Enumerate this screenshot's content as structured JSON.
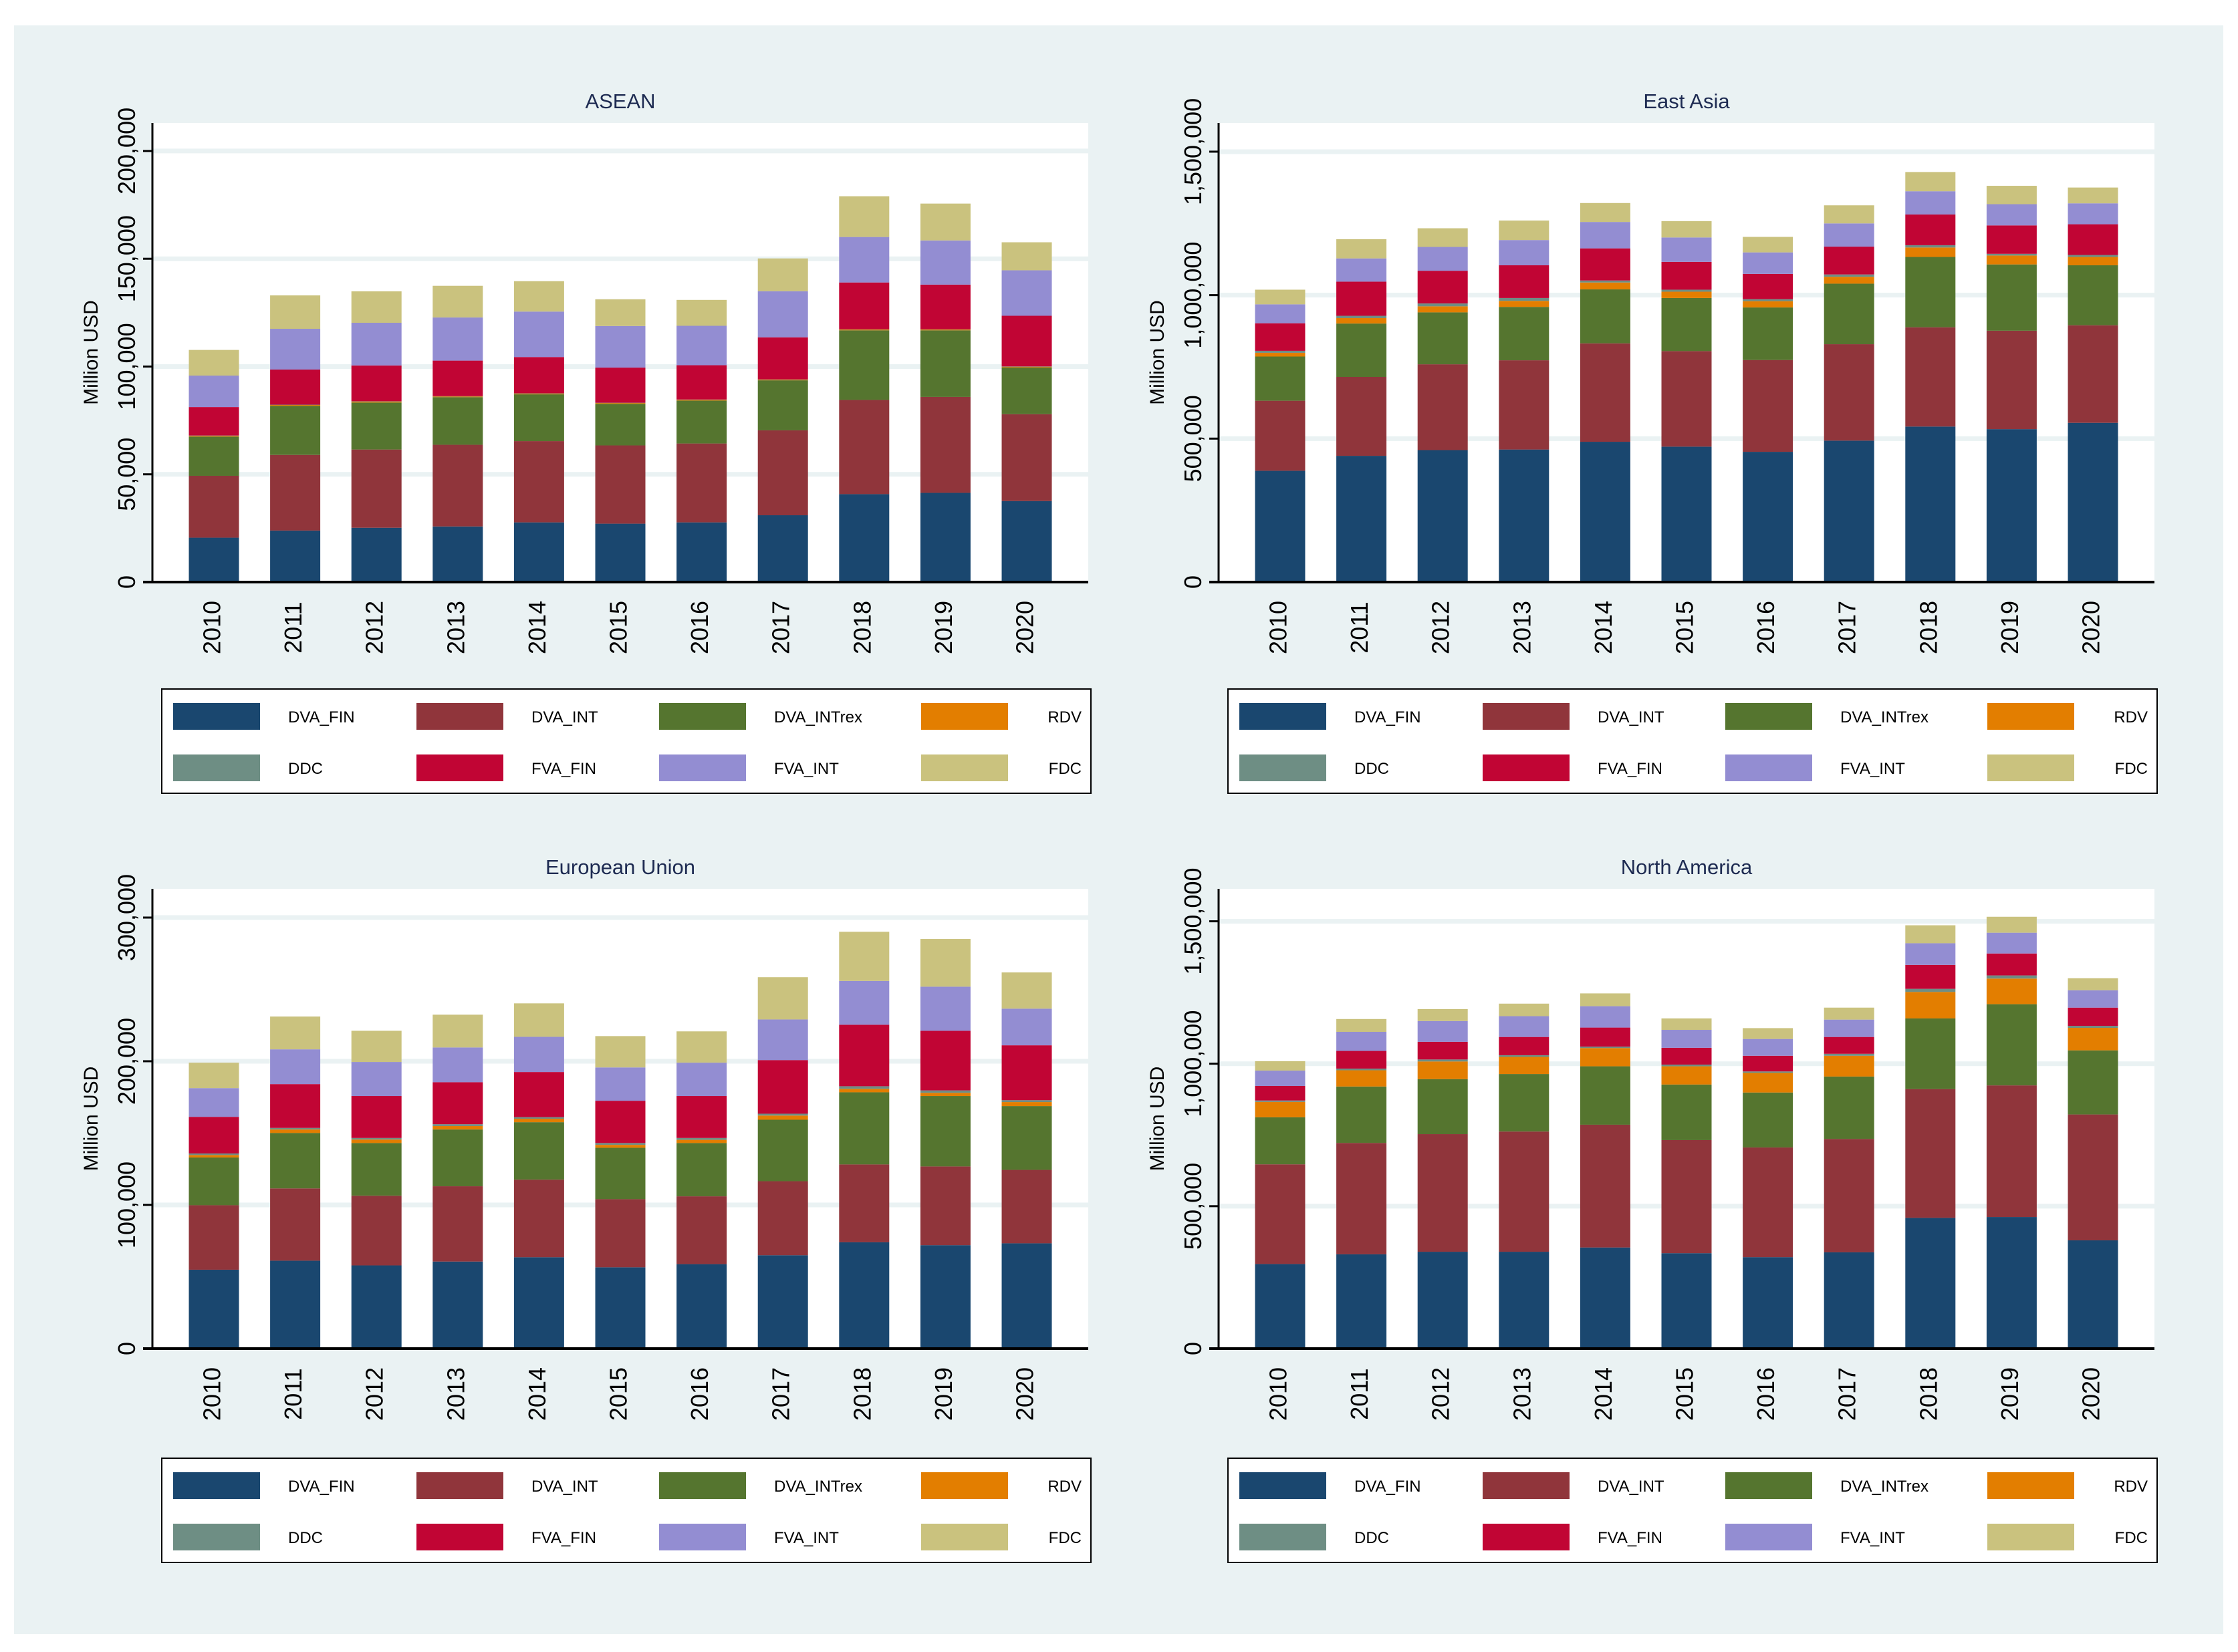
{
  "series_colors": [
    "#1a476f",
    "#90353b",
    "#55752f",
    "#e37e00",
    "#6e8e84",
    "#c10534",
    "#938dd2",
    "#cac27e"
  ],
  "chart_data": [
    {
      "type": "bar",
      "stacked": true,
      "title": "ASEAN",
      "xlabel": "",
      "ylabel": "Million USD",
      "ylim": [
        0,
        213000
      ],
      "grid": true,
      "legend_position": "bottom",
      "yticks": [
        0,
        50000,
        100000,
        150000,
        200000
      ],
      "ytick_labels": [
        "0",
        "50,000",
        "100,000",
        "150,000",
        "200,000"
      ],
      "categories": [
        "2010",
        "2011",
        "2012",
        "2013",
        "2014",
        "2015",
        "2016",
        "2017",
        "2018",
        "2019",
        "2020"
      ],
      "series": [
        {
          "name": "DVA_FIN",
          "values": [
            20600,
            23900,
            25200,
            25800,
            27700,
            27100,
            27700,
            31000,
            40800,
            41400,
            37600
          ]
        },
        {
          "name": "DVA_INT",
          "values": [
            28700,
            35100,
            36300,
            37900,
            37700,
            36300,
            36600,
            39400,
            43700,
            44500,
            40300
          ]
        },
        {
          "name": "DVA_INTrex",
          "values": [
            18200,
            22800,
            21800,
            22100,
            21700,
            19300,
            19900,
            23200,
            32300,
            30900,
            21700
          ]
        },
        {
          "name": "RDV",
          "values": [
            400,
            400,
            500,
            350,
            400,
            400,
            400,
            350,
            400,
            400,
            350
          ]
        },
        {
          "name": "DDC",
          "values": [
            100,
            100,
            100,
            100,
            100,
            100,
            100,
            100,
            100,
            100,
            100
          ]
        },
        {
          "name": "FVA_FIN",
          "values": [
            13200,
            16300,
            16600,
            16500,
            16800,
            16300,
            15900,
            19500,
            21700,
            20700,
            23500
          ]
        },
        {
          "name": "FVA_INT",
          "values": [
            14600,
            18900,
            19800,
            20000,
            21100,
            19300,
            18300,
            21400,
            21100,
            20500,
            21100
          ]
        },
        {
          "name": "FDC",
          "values": [
            11900,
            15500,
            14600,
            14700,
            14100,
            12400,
            12000,
            15200,
            18900,
            17100,
            13000
          ]
        }
      ]
    },
    {
      "type": "bar",
      "stacked": true,
      "title": "East Asia",
      "xlabel": "",
      "ylabel": "Million USD",
      "ylim": [
        0,
        1600000
      ],
      "grid": true,
      "legend_position": "bottom",
      "yticks": [
        0,
        500000,
        1000000,
        1500000
      ],
      "ytick_labels": [
        "0",
        "500,000",
        "1,000,000",
        "1,500,000"
      ],
      "categories": [
        "2010",
        "2011",
        "2012",
        "2013",
        "2014",
        "2015",
        "2016",
        "2017",
        "2018",
        "2019",
        "2020"
      ],
      "series": [
        {
          "name": "DVA_FIN",
          "values": [
            388000,
            440000,
            460000,
            462000,
            489000,
            472000,
            454000,
            493000,
            542000,
            533000,
            555000
          ]
        },
        {
          "name": "DVA_INT",
          "values": [
            244000,
            275000,
            299000,
            311000,
            343000,
            333000,
            320000,
            336000,
            346000,
            343000,
            340000
          ]
        },
        {
          "name": "DVA_INTrex",
          "values": [
            154000,
            186000,
            181000,
            186000,
            188000,
            185000,
            183000,
            211000,
            245000,
            231000,
            209000
          ]
        },
        {
          "name": "RDV",
          "values": [
            13000,
            19000,
            21000,
            21000,
            24000,
            22000,
            22000,
            24000,
            33000,
            31000,
            29000
          ]
        },
        {
          "name": "DDC",
          "values": [
            7000,
            8000,
            10000,
            10000,
            7000,
            7000,
            7000,
            8000,
            8000,
            6000,
            7000
          ]
        },
        {
          "name": "FVA_FIN",
          "values": [
            96000,
            119000,
            114000,
            114000,
            112000,
            97000,
            88000,
            97000,
            107000,
            99000,
            107000
          ]
        },
        {
          "name": "FVA_INT",
          "values": [
            66000,
            81000,
            83000,
            88000,
            92000,
            85000,
            75000,
            81000,
            81000,
            74000,
            73000
          ]
        },
        {
          "name": "FDC",
          "values": [
            51000,
            67000,
            65000,
            68000,
            66000,
            57000,
            54000,
            63000,
            67000,
            64000,
            55000
          ]
        }
      ]
    },
    {
      "type": "bar",
      "stacked": true,
      "title": "European Union",
      "xlabel": "",
      "ylabel": "Million USD",
      "ylim": [
        0,
        320000
      ],
      "grid": true,
      "legend_position": "bottom",
      "yticks": [
        0,
        100000,
        200000,
        300000
      ],
      "ytick_labels": [
        "0",
        "100,000",
        "200,000",
        "300,000"
      ],
      "categories": [
        "2010",
        "2011",
        "2012",
        "2013",
        "2014",
        "2015",
        "2016",
        "2017",
        "2018",
        "2019",
        "2020"
      ],
      "series": [
        {
          "name": "DVA_FIN",
          "values": [
            54900,
            61200,
            57900,
            60600,
            63600,
            56600,
            58800,
            65000,
            74000,
            72000,
            73300
          ]
        },
        {
          "name": "DVA_INT",
          "values": [
            44900,
            50300,
            48500,
            52400,
            54000,
            47400,
            47200,
            51500,
            54200,
            54800,
            51100
          ]
        },
        {
          "name": "DVA_INTrex",
          "values": [
            33200,
            38600,
            36700,
            39500,
            40000,
            35800,
            37100,
            42800,
            50200,
            49000,
            44400
          ]
        },
        {
          "name": "RDV",
          "values": [
            1700,
            2400,
            2400,
            2400,
            2400,
            2000,
            2200,
            2900,
            2400,
            2200,
            2800
          ]
        },
        {
          "name": "DDC",
          "values": [
            1100,
            1100,
            1100,
            1300,
            1100,
            1300,
            1300,
            1300,
            1800,
            1700,
            1300
          ]
        },
        {
          "name": "FVA_FIN",
          "values": [
            25500,
            30500,
            29200,
            29200,
            31400,
            29400,
            29200,
            37300,
            42800,
            41500,
            38200
          ]
        },
        {
          "name": "FVA_INT",
          "values": [
            20000,
            24200,
            23700,
            24200,
            24500,
            23200,
            23200,
            28300,
            30500,
            30700,
            25500
          ]
        },
        {
          "name": "FDC",
          "values": [
            17700,
            22800,
            21700,
            22800,
            23300,
            21800,
            21800,
            29400,
            34200,
            33200,
            25200
          ]
        }
      ]
    },
    {
      "type": "bar",
      "stacked": true,
      "title": "North America",
      "xlabel": "",
      "ylabel": "Million USD",
      "ylim": [
        0,
        1614000
      ],
      "grid": true,
      "legend_position": "bottom",
      "yticks": [
        0,
        500000,
        1000000,
        1500000
      ],
      "ytick_labels": [
        "0",
        "500,000",
        "1,000,000",
        "1,500,000"
      ],
      "categories": [
        "2010",
        "2011",
        "2012",
        "2013",
        "2014",
        "2015",
        "2016",
        "2017",
        "2018",
        "2019",
        "2020"
      ],
      "series": [
        {
          "name": "DVA_FIN",
          "values": [
            297000,
            331000,
            340000,
            340000,
            355000,
            335000,
            321000,
            338000,
            459000,
            462000,
            380000
          ]
        },
        {
          "name": "DVA_INT",
          "values": [
            350000,
            391000,
            413000,
            422000,
            431000,
            397000,
            385000,
            398000,
            452000,
            462000,
            442000
          ]
        },
        {
          "name": "DVA_INTrex",
          "values": [
            165000,
            198000,
            193000,
            202000,
            205000,
            195000,
            193000,
            219000,
            248000,
            285000,
            225000
          ]
        },
        {
          "name": "RDV",
          "values": [
            54000,
            57000,
            62000,
            60000,
            64000,
            64000,
            69000,
            73000,
            93000,
            90000,
            79000
          ]
        },
        {
          "name": "DDC",
          "values": [
            5000,
            6000,
            7000,
            6000,
            5000,
            6000,
            5000,
            7000,
            11000,
            11000,
            7000
          ]
        },
        {
          "name": "FVA_FIN",
          "values": [
            51000,
            62000,
            62000,
            64000,
            67000,
            59000,
            55000,
            59000,
            84000,
            77000,
            64000
          ]
        },
        {
          "name": "FVA_INT",
          "values": [
            54000,
            67000,
            73000,
            73000,
            75000,
            63000,
            59000,
            61000,
            76000,
            73000,
            61000
          ]
        },
        {
          "name": "FDC",
          "values": [
            33000,
            45000,
            42000,
            44000,
            45000,
            40000,
            38000,
            42000,
            63000,
            56000,
            42000
          ]
        }
      ]
    }
  ]
}
